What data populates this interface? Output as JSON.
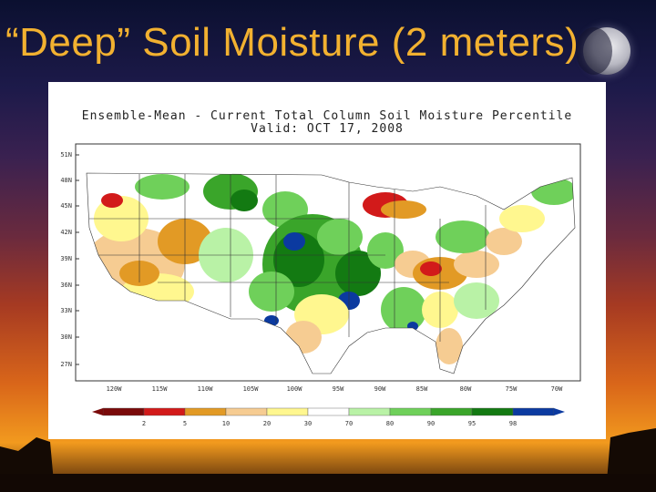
{
  "slide": {
    "title": "“Deep” Soil Moisture (2 meters)"
  },
  "map": {
    "title_line1": "Ensemble-Mean  -  Current Total Column Soil Moisture Percentile",
    "title_line2": "Valid: OCT 17, 2008",
    "lat_labels": [
      "51N",
      "48N",
      "45N",
      "42N",
      "39N",
      "36N",
      "33N",
      "30N",
      "27N"
    ],
    "lon_labels": [
      "120W",
      "115W",
      "110W",
      "105W",
      "100W",
      "95W",
      "90W",
      "85W",
      "80W",
      "75W",
      "70W"
    ],
    "colorbar": {
      "ticks": [
        "2",
        "5",
        "10",
        "20",
        "30",
        "70",
        "80",
        "90",
        "95",
        "98"
      ],
      "colors": [
        "#7a0a0a",
        "#d21a1a",
        "#e29a25",
        "#f6cc92",
        "#fff78f",
        "#ffffff",
        "#b9f2a6",
        "#6fd05a",
        "#3aa52a",
        "#137a12",
        "#0b3aa0"
      ]
    }
  }
}
